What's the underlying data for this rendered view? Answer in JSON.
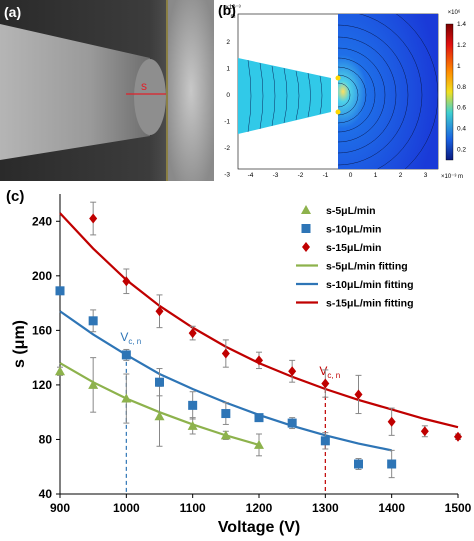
{
  "panel_a": {
    "label": "(a)",
    "marker_label": "s",
    "colors": {
      "marker": "#e0202a",
      "line": "#c9b23c"
    }
  },
  "panel_b": {
    "label": "(b)",
    "x_ticks": [
      "-4",
      "-3",
      "-2",
      "-1",
      "0",
      "1",
      "2",
      "3"
    ],
    "y_ticks": [
      "2",
      "1",
      "0",
      "-1",
      "-2",
      "-3"
    ],
    "x_exponent": "×10⁻³ m",
    "y_exponent": "×10⁻³",
    "y_unit": "m",
    "colorbar_exponent": "×10⁶",
    "colorbar_ticks": [
      "1.4",
      "1.2",
      "1",
      "0.8",
      "0.6",
      "0.4",
      "0.2"
    ],
    "colorbar_range": [
      0.1,
      1.4
    ]
  },
  "panel_c": {
    "label": "(c)",
    "annotations": [
      {
        "text": "V",
        "sub": "c, n",
        "color": "#2e75b6",
        "x": 1000
      },
      {
        "text": "V",
        "sub": "c, n",
        "color": "#c00000",
        "x": 1300
      }
    ]
  },
  "chart_data": {
    "type": "scatter",
    "xlabel": "Voltage (V)",
    "ylabel": "s (μm)",
    "xlim": [
      900,
      1500
    ],
    "ylim": [
      40,
      260
    ],
    "x_ticks": [
      900,
      1000,
      1100,
      1200,
      1300,
      1400,
      1500
    ],
    "y_ticks": [
      40,
      80,
      120,
      160,
      200,
      240
    ],
    "grid": false,
    "legend_position": "top-right",
    "series": [
      {
        "name": "s-5μL/min",
        "marker": "triangle",
        "color": "#8db24c",
        "x": [
          900,
          950,
          1000,
          1050,
          1100,
          1150,
          1200
        ],
        "y": [
          130,
          120,
          110,
          97,
          90,
          83,
          76
        ],
        "err": [
          3,
          20,
          18,
          22,
          6,
          3,
          8
        ]
      },
      {
        "name": "s-10μL/min",
        "marker": "square",
        "color": "#2e75b6",
        "x": [
          900,
          950,
          1000,
          1050,
          1100,
          1150,
          1200,
          1250,
          1300,
          1350,
          1400
        ],
        "y": [
          189,
          167,
          142,
          122,
          105,
          99,
          96,
          92,
          79,
          62,
          62
        ],
        "err": [
          2,
          8,
          4,
          10,
          10,
          8,
          2,
          4,
          6,
          4,
          10
        ]
      },
      {
        "name": "s-15μL/min",
        "marker": "diamond",
        "color": "#c00000",
        "x": [
          950,
          1000,
          1050,
          1100,
          1150,
          1200,
          1250,
          1300,
          1350,
          1400,
          1450,
          1500
        ],
        "y": [
          242,
          196,
          174,
          158,
          143,
          138,
          130,
          121,
          113,
          93,
          86,
          82
        ],
        "err": [
          12,
          9,
          12,
          5,
          10,
          6,
          8,
          10,
          14,
          10,
          4,
          2
        ]
      },
      {
        "name": "s-5μL/min fitting",
        "type": "line",
        "color": "#8db24c",
        "x": [
          900,
          950,
          1000,
          1050,
          1100,
          1150,
          1200
        ],
        "y": [
          136,
          122,
          110,
          100,
          91,
          83,
          76
        ]
      },
      {
        "name": "s-10μL/min fitting",
        "type": "line",
        "color": "#2e75b6",
        "x": [
          900,
          950,
          1000,
          1050,
          1100,
          1150,
          1200,
          1250,
          1300,
          1350,
          1400
        ],
        "y": [
          174,
          157,
          142,
          128,
          117,
          107,
          98,
          90,
          83,
          77,
          72
        ]
      },
      {
        "name": "s-15μL/min fitting",
        "type": "line",
        "color": "#c00000",
        "x": [
          900,
          950,
          1000,
          1050,
          1100,
          1150,
          1200,
          1250,
          1300,
          1350,
          1400,
          1450,
          1500
        ],
        "y": [
          246,
          220,
          197,
          178,
          162,
          148,
          136,
          126,
          117,
          109,
          102,
          95,
          89
        ]
      }
    ]
  }
}
